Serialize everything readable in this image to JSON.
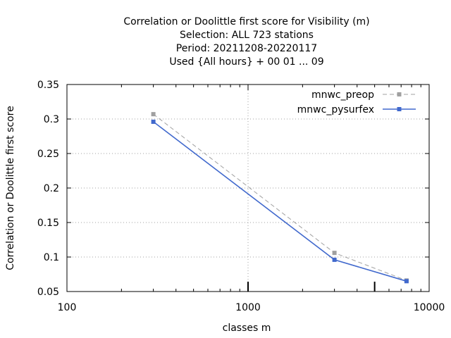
{
  "chart_data": {
    "type": "line",
    "title_lines": [
      "Correlation or Doolittle first score  for Visibility (m)",
      "Selection: ALL     723 stations",
      "Period: 20211208-20220117",
      "Used {All hours} + 00 01 ... 09"
    ],
    "xlabel": "classes m",
    "ylabel": "Correlation or Doolittle first score",
    "x_scale": "log",
    "xlim": [
      100,
      10000
    ],
    "ylim": [
      0.05,
      0.35
    ],
    "x_ticks": [
      {
        "value": 100,
        "label": "100"
      },
      {
        "value": 1000,
        "label": "1000"
      },
      {
        "value": 10000,
        "label": "10000"
      }
    ],
    "y_ticks": [
      {
        "value": 0.05,
        "label": "0.05"
      },
      {
        "value": 0.1,
        "label": "0.1"
      },
      {
        "value": 0.15,
        "label": "0.15"
      },
      {
        "value": 0.2,
        "label": "0.2"
      },
      {
        "value": 0.25,
        "label": "0.25"
      },
      {
        "value": 0.3,
        "label": "0.3"
      },
      {
        "value": 0.35,
        "label": "0.35"
      }
    ],
    "grid": true,
    "legend_position": "top-right",
    "series": [
      {
        "name": "mnwc_preop",
        "color": "#a0a0a0",
        "dashed": true,
        "x": [
          300,
          3000,
          7500
        ],
        "y": [
          0.307,
          0.106,
          0.066
        ]
      },
      {
        "name": "mnwc_pysurfex",
        "color": "#4169cd",
        "dashed": false,
        "x": [
          300,
          3000,
          7500
        ],
        "y": [
          0.296,
          0.096,
          0.065
        ]
      }
    ],
    "bottom_markers_x": [
      1000,
      5000
    ]
  }
}
